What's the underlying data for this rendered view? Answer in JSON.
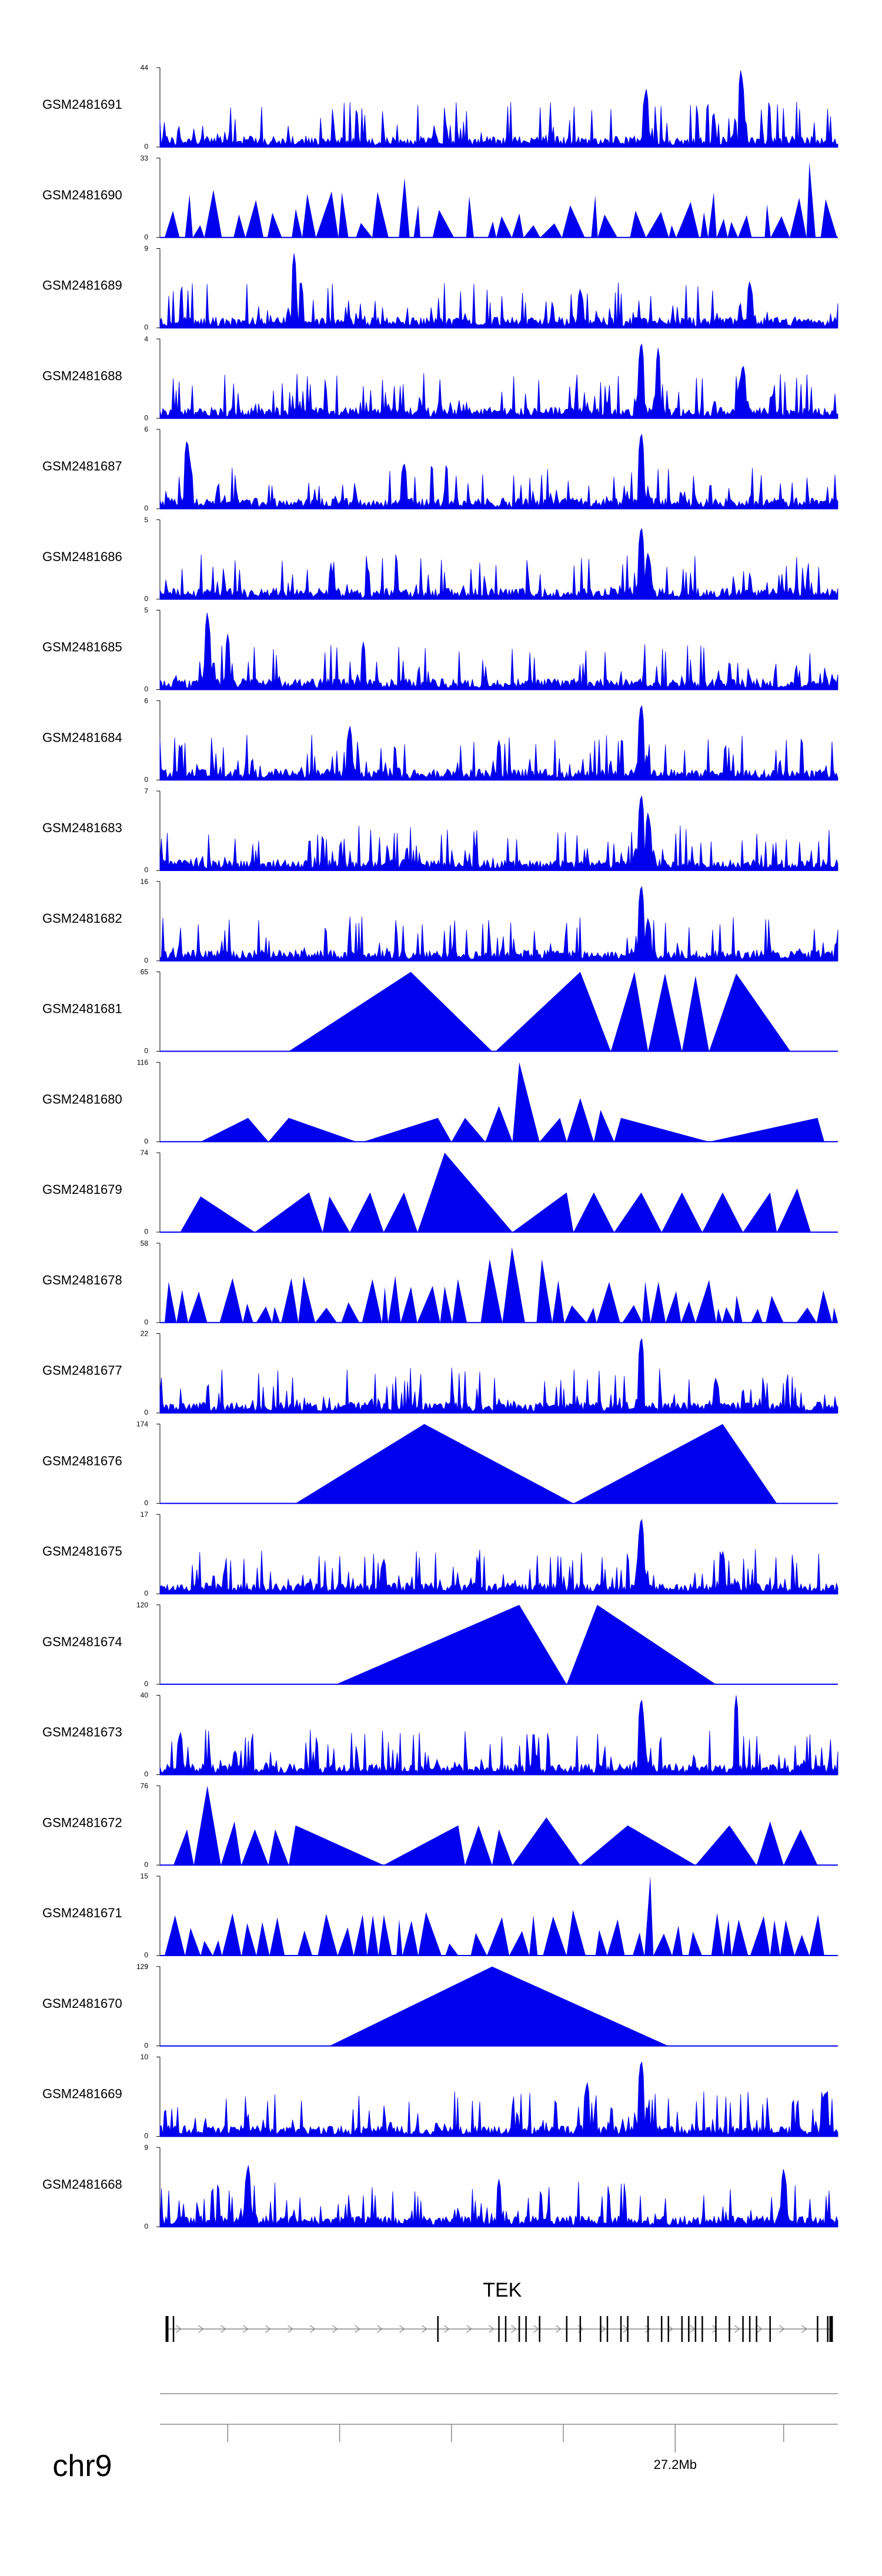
{
  "chart_data": {
    "type": "area",
    "title": "",
    "region": {
      "chromosome": "chr9",
      "axis_label": "27.2Mb",
      "gene": "TEK"
    },
    "tracks": [
      {
        "name": "GSM2481691",
        "ymax": "44",
        "ymin": "0",
        "style": "noisy",
        "peaks": [
          [
            0.717,
            0.75
          ],
          [
            0.857,
            1.0
          ]
        ]
      },
      {
        "name": "GSM2481690",
        "ymax": "33",
        "ymin": "0",
        "style": "spiky-tri",
        "peaks": [
          [
            0.07,
            0.6
          ],
          [
            0.35,
            0.75
          ],
          [
            0.67,
            0.8
          ],
          [
            0.955,
            0.95
          ]
        ]
      },
      {
        "name": "GSM2481689",
        "ymax": "9",
        "ymin": "0",
        "style": "noisy",
        "peaks": [
          [
            0.198,
            0.95
          ],
          [
            0.62,
            0.5
          ],
          [
            0.87,
            0.6
          ]
        ]
      },
      {
        "name": "GSM2481688",
        "ymax": "4",
        "ymin": "0",
        "style": "noisy",
        "peaks": [
          [
            0.71,
            1.0
          ],
          [
            0.735,
            0.9
          ],
          [
            0.86,
            0.7
          ]
        ]
      },
      {
        "name": "GSM2481687",
        "ymax": "6",
        "ymin": "0",
        "style": "noisy",
        "peaks": [
          [
            0.04,
            0.9
          ],
          [
            0.71,
            1.0
          ],
          [
            0.36,
            0.6
          ]
        ]
      },
      {
        "name": "GSM2481686",
        "ymax": "5",
        "ymin": "0",
        "style": "noisy",
        "peaks": [
          [
            0.71,
            0.95
          ],
          [
            0.72,
            0.6
          ]
        ]
      },
      {
        "name": "GSM2481685",
        "ymax": "5",
        "ymin": "0",
        "style": "noisy",
        "peaks": [
          [
            0.07,
            1.0
          ],
          [
            0.1,
            0.7
          ],
          [
            0.3,
            0.6
          ]
        ]
      },
      {
        "name": "GSM2481684",
        "ymax": "6",
        "ymin": "0",
        "style": "noisy",
        "peaks": [
          [
            0.71,
            1.0
          ],
          [
            0.28,
            0.7
          ],
          [
            0.5,
            0.5
          ]
        ]
      },
      {
        "name": "GSM2481683",
        "ymax": "7",
        "ymin": "0",
        "style": "noisy",
        "peaks": [
          [
            0.71,
            1.0
          ],
          [
            0.72,
            0.75
          ]
        ]
      },
      {
        "name": "GSM2481682",
        "ymax": "16",
        "ymin": "0",
        "style": "noisy",
        "peaks": [
          [
            0.71,
            1.0
          ],
          [
            0.72,
            0.55
          ]
        ]
      },
      {
        "name": "GSM2481681",
        "ymax": "65",
        "ymin": "0",
        "style": "triangles",
        "tris": [
          [
            0.19,
            0.49,
            0.37,
            1.0
          ],
          [
            0.495,
            0.665,
            0.62,
            1.0
          ],
          [
            0.665,
            0.72,
            0.7,
            1.0
          ],
          [
            0.72,
            0.77,
            0.745,
            0.98
          ],
          [
            0.77,
            0.81,
            0.79,
            0.95
          ],
          [
            0.81,
            0.93,
            0.85,
            0.98
          ]
        ]
      },
      {
        "name": "GSM2481680",
        "ymax": "116",
        "ymin": "0",
        "style": "triangles",
        "tris": [
          [
            0.06,
            0.16,
            0.13,
            0.3
          ],
          [
            0.16,
            0.29,
            0.19,
            0.3
          ],
          [
            0.3,
            0.43,
            0.41,
            0.3
          ],
          [
            0.43,
            0.48,
            0.45,
            0.3
          ],
          [
            0.48,
            0.52,
            0.5,
            0.45
          ],
          [
            0.52,
            0.56,
            0.53,
            1.0
          ],
          [
            0.56,
            0.6,
            0.59,
            0.3
          ],
          [
            0.6,
            0.64,
            0.62,
            0.55
          ],
          [
            0.64,
            0.67,
            0.65,
            0.4
          ],
          [
            0.67,
            0.81,
            0.68,
            0.3
          ],
          [
            0.81,
            0.98,
            0.97,
            0.3
          ]
        ]
      },
      {
        "name": "GSM2481679",
        "ymax": "74",
        "ymin": "0",
        "style": "triangles",
        "tris": [
          [
            0.03,
            0.14,
            0.06,
            0.45
          ],
          [
            0.14,
            0.24,
            0.22,
            0.5
          ],
          [
            0.24,
            0.28,
            0.25,
            0.45
          ],
          [
            0.28,
            0.33,
            0.31,
            0.5
          ],
          [
            0.33,
            0.38,
            0.36,
            0.5
          ],
          [
            0.38,
            0.52,
            0.42,
            1.0
          ],
          [
            0.52,
            0.61,
            0.6,
            0.5
          ],
          [
            0.61,
            0.67,
            0.64,
            0.5
          ],
          [
            0.67,
            0.74,
            0.71,
            0.5
          ],
          [
            0.74,
            0.8,
            0.77,
            0.5
          ],
          [
            0.8,
            0.86,
            0.83,
            0.5
          ],
          [
            0.86,
            0.91,
            0.9,
            0.5
          ],
          [
            0.91,
            0.96,
            0.94,
            0.55
          ]
        ]
      },
      {
        "name": "GSM2481678",
        "ymax": "58",
        "ymin": "0",
        "style": "spiky-tri",
        "peaks": [
          [
            0.5,
            0.95
          ],
          [
            0.66,
            0.95
          ],
          [
            0.56,
            0.8
          ],
          [
            0.47,
            0.8
          ]
        ]
      },
      {
        "name": "GSM2481677",
        "ymax": "22",
        "ymin": "0",
        "style": "noisy",
        "peaks": [
          [
            0.71,
            1.0
          ],
          [
            0.82,
            0.45
          ]
        ]
      },
      {
        "name": "GSM2481676",
        "ymax": "174",
        "ymin": "0",
        "style": "triangles",
        "tris": [
          [
            0.2,
            0.61,
            0.39,
            1.0
          ],
          [
            0.61,
            0.91,
            0.83,
            1.0
          ]
        ]
      },
      {
        "name": "GSM2481675",
        "ymax": "17",
        "ymin": "0",
        "style": "noisy",
        "peaks": [
          [
            0.71,
            1.0
          ],
          [
            0.83,
            0.55
          ],
          [
            0.33,
            0.45
          ]
        ]
      },
      {
        "name": "GSM2481674",
        "ymax": "120",
        "ymin": "0",
        "style": "triangles",
        "tris": [
          [
            0.26,
            0.6,
            0.53,
            1.0
          ],
          [
            0.6,
            0.82,
            0.645,
            1.0
          ]
        ]
      },
      {
        "name": "GSM2481673",
        "ymax": "40",
        "ymin": "0",
        "style": "noisy",
        "peaks": [
          [
            0.71,
            1.0
          ],
          [
            0.85,
            1.0
          ],
          [
            0.03,
            0.55
          ]
        ]
      },
      {
        "name": "GSM2481672",
        "ymax": "76",
        "ymin": "0",
        "style": "triangles",
        "tris": [
          [
            0.02,
            0.05,
            0.04,
            0.45
          ],
          [
            0.05,
            0.09,
            0.07,
            1.0
          ],
          [
            0.09,
            0.12,
            0.11,
            0.55
          ],
          [
            0.12,
            0.16,
            0.14,
            0.45
          ],
          [
            0.16,
            0.19,
            0.17,
            0.45
          ],
          [
            0.19,
            0.33,
            0.2,
            0.5
          ],
          [
            0.33,
            0.45,
            0.44,
            0.5
          ],
          [
            0.45,
            0.49,
            0.47,
            0.5
          ],
          [
            0.49,
            0.52,
            0.5,
            0.45
          ],
          [
            0.52,
            0.62,
            0.57,
            0.6
          ],
          [
            0.62,
            0.79,
            0.69,
            0.5
          ],
          [
            0.79,
            0.88,
            0.84,
            0.5
          ],
          [
            0.88,
            0.92,
            0.9,
            0.55
          ],
          [
            0.92,
            0.97,
            0.945,
            0.45
          ]
        ]
      },
      {
        "name": "GSM2481671",
        "ymax": "15",
        "ymin": "0",
        "style": "spiky-tri",
        "peaks": [
          [
            0.71,
            1.0
          ],
          [
            0.4,
            0.6
          ],
          [
            0.82,
            0.45
          ]
        ]
      },
      {
        "name": "GSM2481670",
        "ymax": "129",
        "ymin": "0",
        "style": "triangles",
        "tris": [
          [
            0.25,
            0.75,
            0.49,
            1.0
          ]
        ]
      },
      {
        "name": "GSM2481669",
        "ymax": "10",
        "ymin": "0",
        "style": "noisy",
        "peaks": [
          [
            0.71,
            1.0
          ],
          [
            0.63,
            0.7
          ],
          [
            0.98,
            0.55
          ]
        ]
      },
      {
        "name": "GSM2481668",
        "ymax": "9",
        "ymin": "0",
        "style": "noisy",
        "peaks": [
          [
            0.13,
            0.8
          ],
          [
            0.92,
            0.75
          ],
          [
            0.5,
            0.6
          ]
        ]
      }
    ],
    "gene_model": {
      "name": "TEK",
      "start": 0.01,
      "end": 0.99,
      "exons": [
        0.02,
        0.41,
        0.5,
        0.51,
        0.53,
        0.54,
        0.56,
        0.6,
        0.62,
        0.65,
        0.66,
        0.68,
        0.69,
        0.72,
        0.74,
        0.75,
        0.77,
        0.78,
        0.79,
        0.8,
        0.82,
        0.84,
        0.86,
        0.87,
        0.88,
        0.9,
        0.97,
        0.985
      ]
    },
    "axis_ticks": [
      0.1,
      0.265,
      0.43,
      0.595,
      0.76,
      0.92
    ],
    "axis_labeled_tick": 0.76
  }
}
